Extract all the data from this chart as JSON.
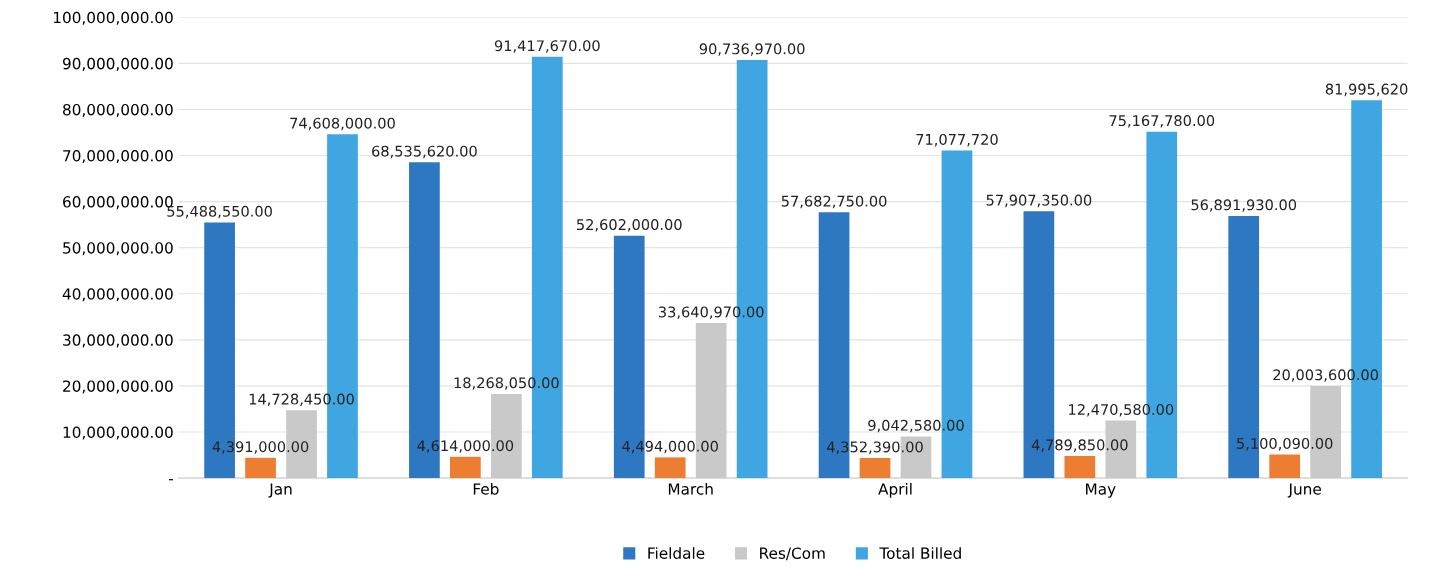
{
  "chart_data": {
    "type": "bar",
    "categories": [
      "Jan",
      "Feb",
      "March",
      "April",
      "May",
      "June"
    ],
    "series": [
      {
        "name": "Fieldale",
        "color": "#2e78c2",
        "values": [
          55488550,
          68535620,
          52602000,
          57682750,
          57907350,
          56891930
        ],
        "value_labels": [
          "55,488,550.00",
          "68,535,620.00",
          "52,602,000.00",
          "57,682,750.00",
          "57,907,350.00",
          "56,891,930.00"
        ]
      },
      {
        "color": "#ed7d31",
        "values": [
          4391000,
          4614000,
          4494000,
          4352390,
          4789850,
          5100090
        ],
        "value_labels": [
          "4,391,000.00",
          "4,614,000.00",
          "4,494,000.00",
          "4,352,390.00",
          "4,789,850.00",
          "5,100,090.00"
        ]
      },
      {
        "name": "Res/Com",
        "color": "#c9c9c9",
        "values": [
          14728450,
          18268050,
          33640970,
          9042580,
          12470580,
          20003600
        ],
        "value_labels": [
          "14,728,450.00",
          "18,268,050.00",
          "33,640,970.00",
          "9,042,580.00",
          "12,470,580.00",
          "20,003,600.00"
        ]
      },
      {
        "name": "Total Billed",
        "color": "#3fa6e2",
        "values": [
          74608000,
          91417670,
          90736970,
          71077720,
          75167780,
          81995620
        ],
        "value_labels": [
          "74,608,000.00",
          "91,417,670.00",
          "90,736,970.00",
          "71,077,720",
          "75,167,780.00",
          "81,995,620"
        ]
      }
    ],
    "ylim": [
      0,
      100000000
    ],
    "yticks": [
      {
        "value": 0,
        "label": "-"
      },
      {
        "value": 10000000,
        "label": "10,000,000.00"
      },
      {
        "value": 20000000,
        "label": "20,000,000.00"
      },
      {
        "value": 30000000,
        "label": "30,000,000.00"
      },
      {
        "value": 40000000,
        "label": "40,000,000.00"
      },
      {
        "value": 50000000,
        "label": "50,000,000.00"
      },
      {
        "value": 60000000,
        "label": "60,000,000.00"
      },
      {
        "value": 70000000,
        "label": "70,000,000.00"
      },
      {
        "value": 80000000,
        "label": "80,000,000.00"
      },
      {
        "value": 90000000,
        "label": "90,000,000.00"
      },
      {
        "value": 100000000,
        "label": "100,000,000.00"
      }
    ],
    "grid": "y",
    "legend": "bottom"
  }
}
